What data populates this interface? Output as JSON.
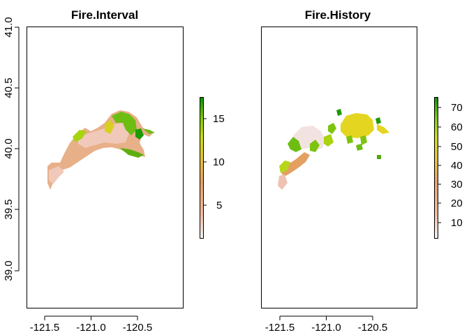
{
  "panels": [
    {
      "title": "Fire.Interval",
      "x_ticks": [
        "-121.5",
        "-121.0",
        "-120.5"
      ],
      "y_ticks": [
        "39.0",
        "39.5",
        "40.0",
        "40.5",
        "41.0"
      ],
      "legend_ticks": [
        "5",
        "10",
        "15"
      ]
    },
    {
      "title": "Fire.History",
      "x_ticks": [
        "-121.5",
        "-121.0",
        "-120.5"
      ],
      "y_ticks": [],
      "legend_ticks": [
        "10",
        "20",
        "30",
        "40",
        "50",
        "60",
        "70"
      ]
    }
  ],
  "chart_data": [
    {
      "type": "heatmap",
      "title": "Fire.Interval",
      "x_ticks": [
        -121.5,
        -121.0,
        -120.5
      ],
      "y_ticks": [
        39.0,
        39.5,
        40.0,
        40.5,
        41.0
      ],
      "xlim": [
        -121.73,
        -120.07
      ],
      "ylim": [
        38.68,
        41.0
      ],
      "value_range": [
        1,
        17.5
      ],
      "legend_ticks": [
        5,
        10,
        15
      ],
      "colors": [
        "#F2F2F2",
        "#EEB99F",
        "#E6A26B",
        "#E1C33B",
        "#C9DB18",
        "#7CC40F",
        "#0D9000"
      ],
      "legend_placement": "right"
    },
    {
      "type": "heatmap",
      "title": "Fire.History",
      "x_ticks": [
        -121.5,
        -121.0,
        -120.5
      ],
      "xlim": [
        -121.73,
        -120.07
      ],
      "ylim": [
        38.68,
        41.0
      ],
      "value_range": [
        1,
        76
      ],
      "legend_ticks": [
        10,
        20,
        30,
        40,
        50,
        60,
        70
      ],
      "colors": [
        "#F2F2F2",
        "#EEB99F",
        "#E6A26B",
        "#E1C33B",
        "#C9DB18",
        "#7CC40F",
        "#0D9000"
      ],
      "legend_placement": "right"
    }
  ]
}
